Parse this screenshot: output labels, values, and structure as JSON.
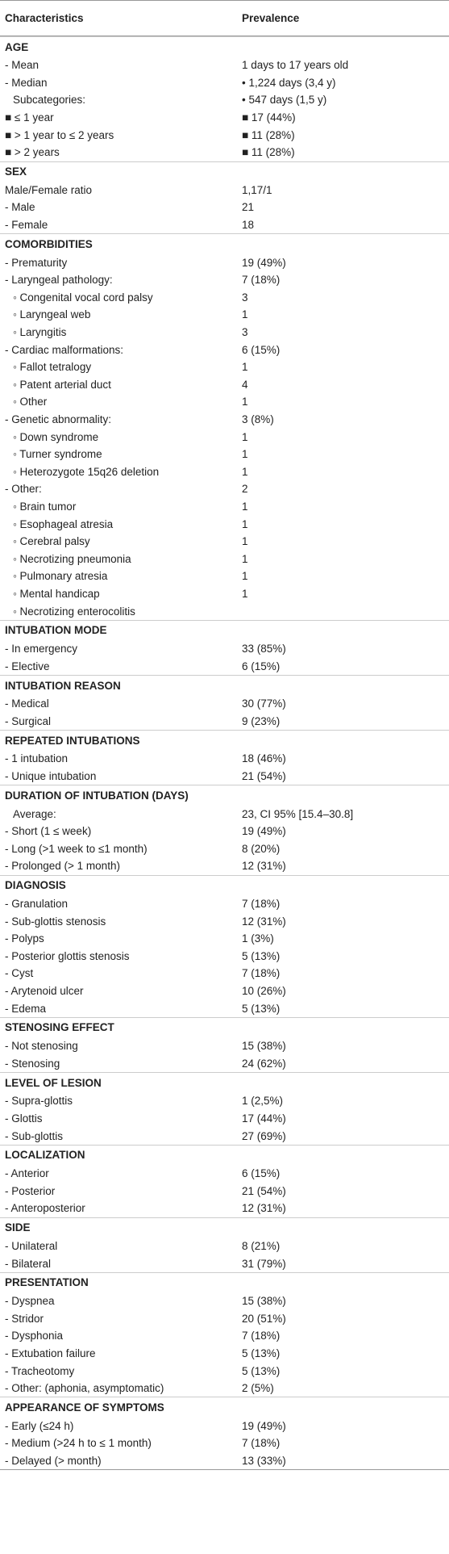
{
  "table": {
    "header": [
      "Characteristics",
      "Prevalence"
    ],
    "sections": [
      {
        "title": "AGE",
        "rows": [
          [
            "- Mean",
            "1 days to 17 years old"
          ],
          [
            "- Median",
            "• 1,224 days (3,4 y)"
          ],
          [
            "Subcategories:",
            "• 547 days (1,5 y)"
          ],
          [
            "■ ≤ 1 year",
            "■ 17 (44%)"
          ],
          [
            "■ > 1 year to ≤ 2 years",
            "■ 11 (28%)"
          ],
          [
            "■ > 2 years",
            "■ 11 (28%)"
          ]
        ]
      },
      {
        "title": "SEX",
        "rows": [
          [
            "Male/Female ratio",
            "1,17/1"
          ],
          [
            "- Male",
            "21"
          ],
          [
            "- Female",
            "18"
          ]
        ]
      },
      {
        "title": "COMORBIDITIES",
        "rows": [
          [
            "- Prematurity",
            "19 (49%)"
          ],
          [
            "- Laryngeal pathology:",
            "7 (18%)"
          ],
          [
            "◦ Congenital vocal cord palsy",
            "3"
          ],
          [
            "◦ Laryngeal web",
            "1"
          ],
          [
            "◦ Laryngitis",
            "3"
          ],
          [
            "- Cardiac malformations:",
            "6 (15%)"
          ],
          [
            "◦ Fallot tetralogy",
            "1"
          ],
          [
            "◦ Patent arterial duct",
            "4"
          ],
          [
            "◦ Other",
            "1"
          ],
          [
            "- Genetic abnormality:",
            "3 (8%)"
          ],
          [
            "◦ Down syndrome",
            "1"
          ],
          [
            "◦ Turner syndrome",
            "1"
          ],
          [
            "◦ Heterozygote 15q26 deletion",
            "1"
          ],
          [
            "- Other:",
            "2"
          ],
          [
            "◦ Brain tumor",
            "1"
          ],
          [
            "◦ Esophageal atresia",
            "1"
          ],
          [
            "◦ Cerebral palsy",
            "1"
          ],
          [
            "◦ Necrotizing pneumonia",
            "1"
          ],
          [
            "◦ Pulmonary atresia",
            "1"
          ],
          [
            "◦ Mental handicap",
            "1"
          ],
          [
            "◦ Necrotizing enterocolitis",
            null
          ]
        ]
      },
      {
        "title": "INTUBATION MODE",
        "rows": [
          [
            "- In emergency",
            "33 (85%)"
          ],
          [
            "- Elective",
            "6 (15%)"
          ]
        ]
      },
      {
        "title": "INTUBATION REASON",
        "rows": [
          [
            "- Medical",
            "30 (77%)"
          ],
          [
            "- Surgical",
            "9 (23%)"
          ]
        ]
      },
      {
        "title": "REPEATED INTUBATIONS",
        "rows": [
          [
            "- 1 intubation",
            "18 (46%)"
          ],
          [
            "- Unique intubation",
            "21 (54%)"
          ]
        ]
      },
      {
        "title": "DURATION OF INTUBATION (DAYS)",
        "rows": [
          [
            "Average:",
            "23, CI 95% [15.4–30.8]"
          ],
          [
            "- Short (1 ≤ week)",
            "19 (49%)"
          ],
          [
            "- Long (>1 week to ≤1 month)",
            "8 (20%)"
          ],
          [
            "- Prolonged (> 1 month)",
            "12 (31%)"
          ]
        ]
      },
      {
        "title": "DIAGNOSIS",
        "rows": [
          [
            "- Granulation",
            "7 (18%)"
          ],
          [
            "- Sub-glottis stenosis",
            "12 (31%)"
          ],
          [
            "- Polyps",
            "1 (3%)"
          ],
          [
            "- Posterior glottis stenosis",
            "5 (13%)"
          ],
          [
            "- Cyst",
            "7 (18%)"
          ],
          [
            "- Arytenoid ulcer",
            "10 (26%)"
          ],
          [
            "- Edema",
            "5 (13%)"
          ]
        ]
      },
      {
        "title": "STENOSING EFFECT",
        "rows": [
          [
            "- Not stenosing",
            "15 (38%)"
          ],
          [
            "- Stenosing",
            "24 (62%)"
          ]
        ]
      },
      {
        "title": "LEVEL OF LESION",
        "rows": [
          [
            "- Supra-glottis",
            "1 (2,5%)"
          ],
          [
            "- Glottis",
            "17 (44%)"
          ],
          [
            "- Sub-glottis",
            "27 (69%)"
          ]
        ]
      },
      {
        "title": "LOCALIZATION",
        "rows": [
          [
            "- Anterior",
            "6 (15%)"
          ],
          [
            "- Posterior",
            "21 (54%)"
          ],
          [
            "- Anteroposterior",
            "12 (31%)"
          ]
        ]
      },
      {
        "title": "SIDE",
        "rows": [
          [
            "- Unilateral",
            "8 (21%)"
          ],
          [
            "- Bilateral",
            "31 (79%)"
          ]
        ]
      },
      {
        "title": "PRESENTATION",
        "rows": [
          [
            "- Dyspnea",
            "15 (38%)"
          ],
          [
            "- Stridor",
            "20 (51%)"
          ],
          [
            "- Dysphonia",
            "7 (18%)"
          ],
          [
            "- Extubation failure",
            "5 (13%)"
          ],
          [
            "- Tracheotomy",
            "5 (13%)"
          ],
          [
            "- Other: (aphonia, asymptomatic)",
            "2 (5%)"
          ]
        ]
      },
      {
        "title": "APPEARANCE OF SYMPTOMS",
        "rows": [
          [
            "- Early (≤24 h)",
            "19 (49%)"
          ],
          [
            "- Medium (>24 h to ≤ 1 month)",
            "7 (18%)"
          ],
          [
            "- Delayed (> month)",
            "13 (33%)"
          ]
        ]
      }
    ]
  }
}
